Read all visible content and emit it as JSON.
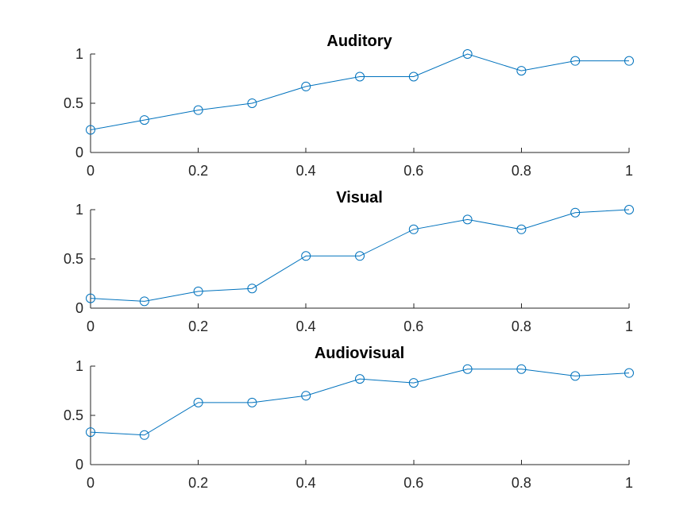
{
  "chart_data": [
    {
      "type": "line",
      "title": "Auditory",
      "xlabel": "",
      "ylabel": "",
      "xlim": [
        0,
        1
      ],
      "ylim": [
        0,
        1
      ],
      "xticks": [
        "0",
        "0.2",
        "0.4",
        "0.6",
        "0.8",
        "1"
      ],
      "yticks": [
        "0",
        "0.5",
        "1"
      ],
      "grid": false,
      "marker": "circle",
      "color": "#0072BD",
      "x": [
        0,
        0.1,
        0.2,
        0.3,
        0.4,
        0.5,
        0.6,
        0.7,
        0.8,
        0.9,
        1.0
      ],
      "series": [
        {
          "values": [
            0.23,
            0.33,
            0.43,
            0.5,
            0.67,
            0.77,
            0.77,
            1.0,
            0.83,
            0.93,
            0.93
          ]
        }
      ]
    },
    {
      "type": "line",
      "title": "Visual",
      "xlabel": "",
      "ylabel": "",
      "xlim": [
        0,
        1
      ],
      "ylim": [
        0,
        1
      ],
      "xticks": [
        "0",
        "0.2",
        "0.4",
        "0.6",
        "0.8",
        "1"
      ],
      "yticks": [
        "0",
        "0.5",
        "1"
      ],
      "grid": false,
      "marker": "circle",
      "color": "#0072BD",
      "x": [
        0,
        0.1,
        0.2,
        0.3,
        0.4,
        0.5,
        0.6,
        0.7,
        0.8,
        0.9,
        1.0
      ],
      "series": [
        {
          "values": [
            0.1,
            0.07,
            0.17,
            0.2,
            0.53,
            0.53,
            0.8,
            0.9,
            0.8,
            0.97,
            1.0
          ]
        }
      ]
    },
    {
      "type": "line",
      "title": "Audiovisual",
      "xlabel": "",
      "ylabel": "",
      "xlim": [
        0,
        1
      ],
      "ylim": [
        0,
        1
      ],
      "xticks": [
        "0",
        "0.2",
        "0.4",
        "0.6",
        "0.8",
        "1"
      ],
      "yticks": [
        "0",
        "0.5",
        "1"
      ],
      "grid": false,
      "marker": "circle",
      "color": "#0072BD",
      "x": [
        0,
        0.1,
        0.2,
        0.3,
        0.4,
        0.5,
        0.6,
        0.7,
        0.8,
        0.9,
        1.0
      ],
      "series": [
        {
          "values": [
            0.33,
            0.3,
            0.63,
            0.63,
            0.7,
            0.87,
            0.83,
            0.97,
            0.97,
            0.9,
            0.93
          ]
        }
      ]
    }
  ]
}
